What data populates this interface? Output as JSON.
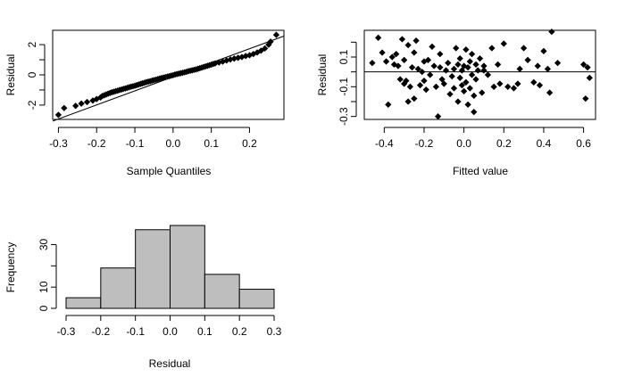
{
  "chart_data": [
    {
      "panel": "qq",
      "type": "scatter",
      "xlabel": "Sample Quantiles",
      "ylabel": "Residual",
      "xlim": [
        -0.315,
        0.29
      ],
      "ylim": [
        -2.95,
        2.95
      ],
      "xticks": [
        -0.3,
        -0.2,
        -0.1,
        0.0,
        0.1,
        0.2
      ],
      "xticklabels": [
        "-0.3",
        "-0.2",
        "-0.1",
        "0.0",
        "0.1",
        "0.2"
      ],
      "yticks": [
        -2,
        -1,
        0,
        1,
        2
      ],
      "ytickvalues_labeled": [
        -2,
        0,
        2
      ],
      "yticklabels": [
        "-2",
        "0",
        "2"
      ],
      "reference_line": {
        "slope": 9.3,
        "intercept": -0.13
      },
      "marker": "diamond",
      "color": "#000000",
      "x": [
        -0.3,
        -0.285,
        -0.255,
        -0.24,
        -0.225,
        -0.21,
        -0.2,
        -0.19,
        -0.185,
        -0.18,
        -0.175,
        -0.17,
        -0.165,
        -0.16,
        -0.155,
        -0.15,
        -0.145,
        -0.14,
        -0.135,
        -0.13,
        -0.125,
        -0.12,
        -0.115,
        -0.11,
        -0.105,
        -0.1,
        -0.095,
        -0.09,
        -0.085,
        -0.08,
        -0.075,
        -0.07,
        -0.065,
        -0.06,
        -0.055,
        -0.05,
        -0.045,
        -0.04,
        -0.035,
        -0.03,
        -0.025,
        -0.02,
        -0.015,
        -0.01,
        -0.005,
        0.0,
        0.005,
        0.01,
        0.015,
        0.02,
        0.025,
        0.03,
        0.035,
        0.04,
        0.045,
        0.05,
        0.055,
        0.06,
        0.065,
        0.07,
        0.075,
        0.08,
        0.085,
        0.09,
        0.095,
        0.1,
        0.105,
        0.11,
        0.12,
        0.13,
        0.14,
        0.15,
        0.16,
        0.17,
        0.18,
        0.19,
        0.2,
        0.21,
        0.22,
        0.23,
        0.24,
        0.25,
        0.255,
        0.27
      ],
      "y": [
        -2.65,
        -2.2,
        -2.05,
        -1.9,
        -1.8,
        -1.7,
        -1.6,
        -1.5,
        -1.4,
        -1.35,
        -1.3,
        -1.25,
        -1.2,
        -1.15,
        -1.12,
        -1.08,
        -1.05,
        -1.0,
        -0.97,
        -0.93,
        -0.9,
        -0.86,
        -0.82,
        -0.78,
        -0.75,
        -0.72,
        -0.68,
        -0.64,
        -0.6,
        -0.56,
        -0.52,
        -0.48,
        -0.45,
        -0.42,
        -0.38,
        -0.35,
        -0.32,
        -0.28,
        -0.24,
        -0.21,
        -0.18,
        -0.15,
        -0.12,
        -0.09,
        -0.05,
        -0.02,
        0.02,
        0.05,
        0.08,
        0.11,
        0.14,
        0.17,
        0.2,
        0.24,
        0.27,
        0.3,
        0.33,
        0.36,
        0.4,
        0.44,
        0.48,
        0.52,
        0.56,
        0.6,
        0.64,
        0.68,
        0.72,
        0.76,
        0.82,
        0.88,
        0.95,
        1.02,
        1.08,
        1.13,
        1.18,
        1.25,
        1.3,
        1.38,
        1.48,
        1.6,
        1.75,
        2.0,
        2.2,
        2.65
      ]
    },
    {
      "panel": "fitted",
      "type": "scatter",
      "xlabel": "Fitted value",
      "ylabel": "Residual",
      "xlim": [
        -0.5,
        0.66
      ],
      "ylim": [
        -0.32,
        0.28
      ],
      "xticks": [
        -0.4,
        -0.2,
        0.0,
        0.2,
        0.4,
        0.6
      ],
      "xticklabels": [
        "-0.4",
        "-0.2",
        "0.0",
        "0.2",
        "0.4",
        "0.6"
      ],
      "yticks": [
        -0.3,
        -0.2,
        -0.1,
        0.0,
        0.1,
        0.2
      ],
      "ytickvalues_labeled": [
        -0.3,
        -0.1,
        0.1
      ],
      "yticklabels": [
        "-0.3",
        "-0.1",
        "0.1"
      ],
      "hline": 0,
      "marker": "diamond",
      "color": "#000000",
      "x": [
        -0.46,
        -0.43,
        -0.41,
        -0.39,
        -0.38,
        -0.36,
        -0.35,
        -0.34,
        -0.33,
        -0.32,
        -0.31,
        -0.3,
        -0.3,
        -0.29,
        -0.28,
        -0.28,
        -0.27,
        -0.26,
        -0.25,
        -0.25,
        -0.24,
        -0.23,
        -0.22,
        -0.21,
        -0.2,
        -0.2,
        -0.19,
        -0.18,
        -0.17,
        -0.16,
        -0.15,
        -0.14,
        -0.13,
        -0.12,
        -0.12,
        -0.11,
        -0.1,
        -0.09,
        -0.08,
        -0.07,
        -0.06,
        -0.05,
        -0.05,
        -0.04,
        -0.03,
        -0.03,
        -0.02,
        -0.02,
        -0.01,
        -0.01,
        0.0,
        0.0,
        0.01,
        0.01,
        0.02,
        0.02,
        0.03,
        0.03,
        0.04,
        0.04,
        0.05,
        0.05,
        0.06,
        0.06,
        0.07,
        0.08,
        0.09,
        0.1,
        0.1,
        0.12,
        0.14,
        0.15,
        0.17,
        0.18,
        0.2,
        0.22,
        0.25,
        0.27,
        0.28,
        0.3,
        0.32,
        0.35,
        0.37,
        0.38,
        0.4,
        0.42,
        0.43,
        0.44,
        0.47,
        0.6,
        0.61,
        0.62,
        0.63
      ],
      "y": [
        0.06,
        0.23,
        0.13,
        0.07,
        -0.22,
        0.1,
        0.05,
        0.12,
        0.04,
        -0.05,
        0.22,
        -0.08,
        0.08,
        -0.06,
        0.18,
        -0.2,
        -0.1,
        0.03,
        -0.18,
        0.13,
        0.21,
        0.02,
        -0.09,
        0.0,
        0.07,
        -0.06,
        -0.12,
        0.08,
        -0.02,
        0.17,
        0.04,
        -0.1,
        -0.3,
        0.03,
        0.12,
        -0.05,
        -0.08,
        0.01,
        0.06,
        -0.15,
        -0.03,
        0.02,
        -0.11,
        0.16,
        0.05,
        -0.2,
        0.09,
        -0.04,
        -0.09,
        0.01,
        -0.13,
        0.04,
        -0.07,
        0.15,
        -0.22,
        0.03,
        -0.11,
        0.07,
        -0.02,
        0.12,
        -0.27,
        -0.16,
        0.05,
        -0.05,
        0.01,
        0.09,
        -0.14,
        0.04,
        0.01,
        -0.02,
        0.16,
        -0.1,
        0.05,
        -0.08,
        0.19,
        -0.1,
        -0.11,
        -0.08,
        0.02,
        0.16,
        0.08,
        -0.07,
        0.04,
        -0.09,
        0.14,
        0.02,
        -0.14,
        0.27,
        0.06,
        0.05,
        -0.18,
        0.03,
        -0.04
      ]
    },
    {
      "panel": "histogram",
      "type": "bar",
      "xlabel": "Residual",
      "ylabel": "Frequency",
      "bin_edges": [
        -0.3,
        -0.2,
        -0.1,
        0.0,
        0.1,
        0.2,
        0.3
      ],
      "values": [
        5,
        19,
        37,
        39,
        16,
        9
      ],
      "xlim": [
        -0.3,
        0.3
      ],
      "ylim": [
        0,
        39
      ],
      "xticks": [
        -0.3,
        -0.2,
        -0.1,
        0.0,
        0.1,
        0.2,
        0.3
      ],
      "xticklabels": [
        "-0.3",
        "-0.2",
        "-0.1",
        "0.0",
        "0.1",
        "0.2",
        "0.3"
      ],
      "yticks": [
        0,
        10,
        20,
        30
      ],
      "ytickvalues_labeled": [
        0,
        10,
        30
      ],
      "yticklabels": [
        "0",
        "10",
        "30"
      ],
      "bar_color": "#bebebe",
      "edge_color": "#000000"
    }
  ]
}
